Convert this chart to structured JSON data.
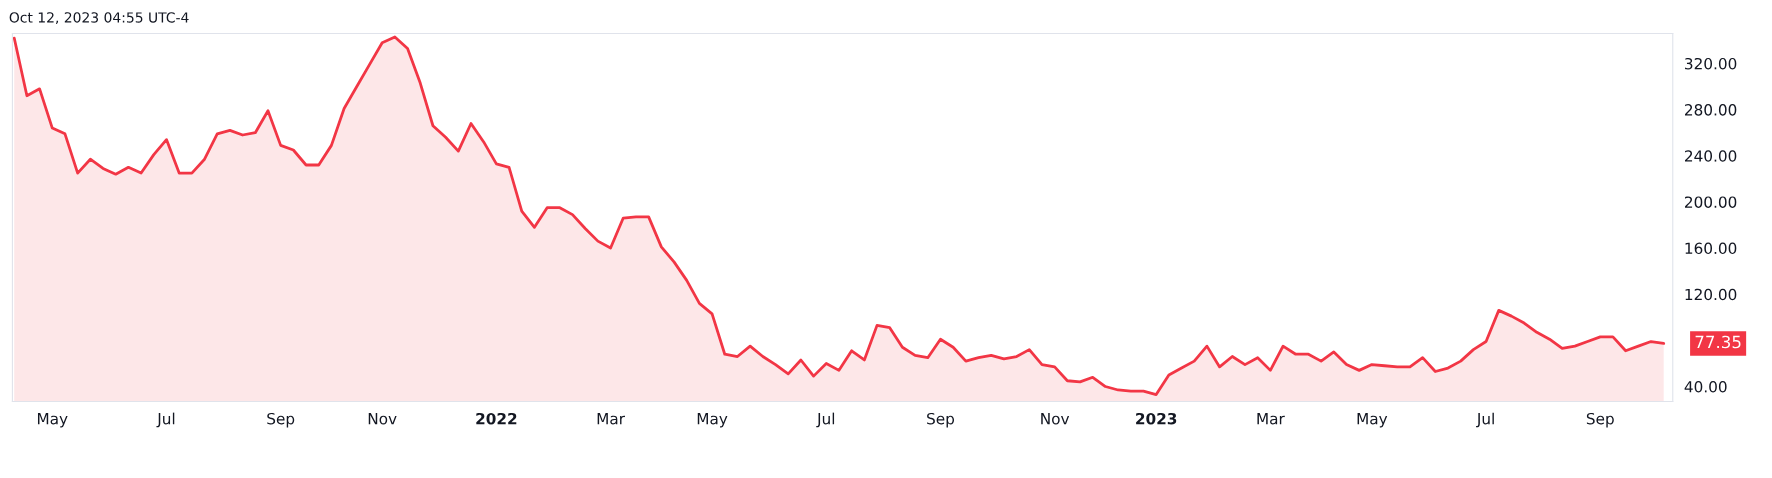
{
  "chart_data": {
    "type": "area",
    "annotations": [
      "Oct 12, 2023 04:55 UTC-4",
      {
        "text": "77.35",
        "x": "2023-10-09",
        "y": 77.35
      }
    ],
    "x": [
      "2021-04-12",
      "2021-04-19",
      "2021-04-26",
      "2021-05-03",
      "2021-05-10",
      "2021-05-17",
      "2021-05-24",
      "2021-05-31",
      "2021-06-07",
      "2021-06-14",
      "2021-06-21",
      "2021-06-28",
      "2021-07-05",
      "2021-07-12",
      "2021-07-19",
      "2021-07-26",
      "2021-08-02",
      "2021-08-09",
      "2021-08-16",
      "2021-08-23",
      "2021-08-30",
      "2021-09-06",
      "2021-09-13",
      "2021-09-20",
      "2021-09-27",
      "2021-10-04",
      "2021-10-11",
      "2021-10-18",
      "2021-10-25",
      "2021-11-01",
      "2021-11-08",
      "2021-11-15",
      "2021-11-22",
      "2021-11-29",
      "2021-12-06",
      "2021-12-13",
      "2021-12-20",
      "2021-12-27",
      "2022-01-03",
      "2022-01-10",
      "2022-01-17",
      "2022-01-24",
      "2022-01-31",
      "2022-02-07",
      "2022-02-14",
      "2022-02-21",
      "2022-02-28",
      "2022-03-07",
      "2022-03-14",
      "2022-03-21",
      "2022-03-28",
      "2022-04-04",
      "2022-04-11",
      "2022-04-18",
      "2022-04-25",
      "2022-05-02",
      "2022-05-09",
      "2022-05-16",
      "2022-05-23",
      "2022-05-30",
      "2022-06-06",
      "2022-06-13",
      "2022-06-20",
      "2022-06-27",
      "2022-07-04",
      "2022-07-11",
      "2022-07-18",
      "2022-07-25",
      "2022-08-01",
      "2022-08-08",
      "2022-08-15",
      "2022-08-22",
      "2022-08-29",
      "2022-09-05",
      "2022-09-12",
      "2022-09-19",
      "2022-09-26",
      "2022-10-03",
      "2022-10-10",
      "2022-10-17",
      "2022-10-24",
      "2022-10-31",
      "2022-11-07",
      "2022-11-14",
      "2022-11-21",
      "2022-11-28",
      "2022-12-05",
      "2022-12-12",
      "2022-12-19",
      "2022-12-26",
      "2023-01-02",
      "2023-01-09",
      "2023-01-16",
      "2023-01-23",
      "2023-01-30",
      "2023-02-06",
      "2023-02-13",
      "2023-02-20",
      "2023-02-27",
      "2023-03-06",
      "2023-03-13",
      "2023-03-20",
      "2023-03-27",
      "2023-04-03",
      "2023-04-10",
      "2023-04-17",
      "2023-04-24",
      "2023-05-01",
      "2023-05-08",
      "2023-05-15",
      "2023-05-22",
      "2023-05-29",
      "2023-06-05",
      "2023-06-12",
      "2023-06-19",
      "2023-06-26",
      "2023-07-03",
      "2023-07-10",
      "2023-07-17",
      "2023-07-24",
      "2023-07-31",
      "2023-08-07",
      "2023-08-14",
      "2023-08-21",
      "2023-08-28",
      "2023-09-04",
      "2023-09-11",
      "2023-09-18",
      "2023-09-25",
      "2023-10-02",
      "2023-10-09"
    ],
    "series": [
      {
        "color": "#f23645",
        "values": [
          342,
          292,
          298,
          264,
          259,
          225,
          237,
          229,
          224,
          230,
          225,
          241,
          254,
          225,
          225,
          237,
          259,
          262,
          258,
          260,
          279,
          249,
          245,
          232,
          232,
          249,
          281,
          300,
          319,
          338,
          343,
          333,
          303,
          266,
          256,
          244,
          268,
          252,
          233,
          230,
          192,
          178,
          195,
          195,
          189,
          177,
          166,
          160,
          186,
          187,
          187,
          161,
          148,
          132,
          112,
          103,
          68,
          66,
          75,
          66,
          59,
          51,
          63,
          49,
          60,
          54,
          71,
          63,
          93,
          91,
          74,
          67,
          65,
          81,
          74,
          62,
          65,
          67,
          64,
          66,
          72,
          59,
          57,
          45,
          44,
          48,
          40,
          37,
          36,
          36,
          33,
          50,
          56,
          62,
          75,
          57,
          66,
          59,
          65,
          54,
          75,
          68,
          68,
          62,
          70,
          59,
          54,
          59,
          58,
          57,
          57,
          65,
          53,
          56,
          62,
          72,
          79,
          106,
          101,
          95,
          87,
          81,
          73,
          75,
          79,
          83,
          83,
          71,
          75,
          79,
          77.35
        ]
      }
    ],
    "xlim": [
      "2021-04-11",
      "2023-10-14"
    ],
    "xticks": [
      {
        "value": "2021-05-03",
        "label": "May"
      },
      {
        "value": "2021-07-05",
        "label": "Jul"
      },
      {
        "value": "2021-09-06",
        "label": "Sep"
      },
      {
        "value": "2021-11-01",
        "label": "Nov"
      },
      {
        "value": "2022-01-03",
        "label": "2022"
      },
      {
        "value": "2022-03-07",
        "label": "Mar"
      },
      {
        "value": "2022-05-02",
        "label": "May"
      },
      {
        "value": "2022-07-04",
        "label": "Jul"
      },
      {
        "value": "2022-09-05",
        "label": "Sep"
      },
      {
        "value": "2022-11-07",
        "label": "Nov"
      },
      {
        "value": "2023-01-02",
        "label": "2023"
      },
      {
        "value": "2023-03-06",
        "label": "Mar"
      },
      {
        "value": "2023-05-01",
        "label": "May"
      },
      {
        "value": "2023-07-03",
        "label": "Jul"
      },
      {
        "value": "2023-09-04",
        "label": "Sep"
      }
    ],
    "ylim": [
      27,
      346
    ],
    "yticks": [
      {
        "value": 40,
        "label": "40.00"
      },
      {
        "value": 120,
        "label": "120.00"
      },
      {
        "value": 160,
        "label": "160.00"
      },
      {
        "value": 200,
        "label": "200.00"
      },
      {
        "value": 240,
        "label": "240.00"
      },
      {
        "value": 280,
        "label": "280.00"
      },
      {
        "value": 320,
        "label": "320.00"
      }
    ],
    "grid": false,
    "legend": false
  }
}
